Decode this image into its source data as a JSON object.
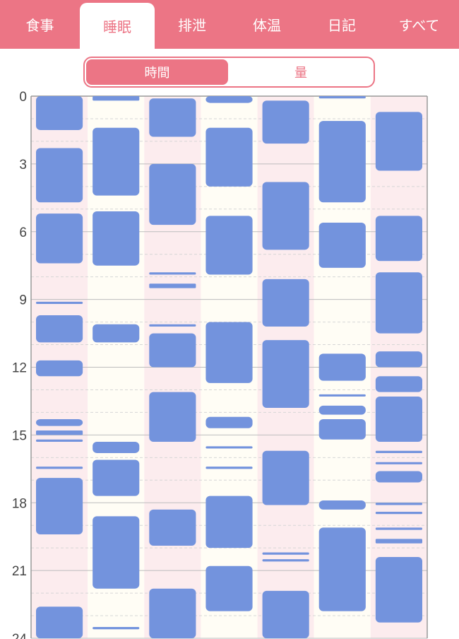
{
  "tabs": [
    {
      "label": "食事",
      "active": false
    },
    {
      "label": "睡眠",
      "active": true
    },
    {
      "label": "排泄",
      "active": false
    },
    {
      "label": "体温",
      "active": false
    },
    {
      "label": "日記",
      "active": false
    },
    {
      "label": "すべて",
      "active": false
    }
  ],
  "toggle": {
    "left_label": "時間",
    "right_label": "量",
    "selected": "時間"
  },
  "colors": {
    "accent": "#ec7585",
    "bar": "#7393dd",
    "pink_col": "#fcecee",
    "cream_col": "#fffdf5",
    "grid": "#c8c8c8"
  },
  "chart_data": {
    "type": "timeline",
    "ylim": [
      0,
      24
    ],
    "y_ticks": [
      0,
      3,
      6,
      9,
      12,
      15,
      18,
      21,
      24
    ],
    "columns": [
      {
        "blocks": [
          [
            0,
            1.5
          ],
          [
            2.3,
            4.7
          ],
          [
            5.2,
            7.4
          ],
          [
            9.1,
            9.2
          ],
          [
            9.7,
            10.9
          ],
          [
            11.7,
            12.4
          ],
          [
            14.3,
            14.6
          ],
          [
            14.8,
            15.0
          ],
          [
            15.2,
            15.3
          ],
          [
            16.4,
            16.5
          ],
          [
            16.9,
            19.4
          ],
          [
            22.6,
            24
          ]
        ]
      },
      {
        "blocks": [
          [
            0,
            0.2
          ],
          [
            1.4,
            4.4
          ],
          [
            5.1,
            7.5
          ],
          [
            10.1,
            10.9
          ],
          [
            15.3,
            15.8
          ],
          [
            16.1,
            17.7
          ],
          [
            18.6,
            21.8
          ],
          [
            23.5,
            23.6
          ]
        ]
      },
      {
        "blocks": [
          [
            0.1,
            1.8
          ],
          [
            3.0,
            5.7
          ],
          [
            7.8,
            7.9
          ],
          [
            8.3,
            8.5
          ],
          [
            10.1,
            10.2
          ],
          [
            10.5,
            12.0
          ],
          [
            13.1,
            15.3
          ],
          [
            18.3,
            19.9
          ],
          [
            21.8,
            24
          ]
        ]
      },
      {
        "blocks": [
          [
            0,
            0.3
          ],
          [
            1.4,
            4.0
          ],
          [
            5.3,
            7.9
          ],
          [
            10.0,
            12.7
          ],
          [
            14.2,
            14.7
          ],
          [
            15.5,
            15.6
          ],
          [
            16.4,
            16.5
          ],
          [
            17.7,
            20.0
          ],
          [
            20.8,
            22.8
          ]
        ]
      },
      {
        "blocks": [
          [
            0.2,
            2.1
          ],
          [
            3.8,
            6.8
          ],
          [
            8.1,
            10.2
          ],
          [
            10.8,
            13.8
          ],
          [
            15.7,
            18.1
          ],
          [
            20.2,
            20.3
          ],
          [
            20.5,
            20.6
          ],
          [
            21.9,
            24
          ]
        ]
      },
      {
        "blocks": [
          [
            0,
            0.1
          ],
          [
            1.1,
            4.7
          ],
          [
            5.6,
            7.6
          ],
          [
            11.4,
            12.6
          ],
          [
            13.2,
            13.3
          ],
          [
            13.7,
            14.1
          ],
          [
            14.3,
            15.2
          ],
          [
            17.9,
            18.3
          ],
          [
            19.1,
            22.8
          ]
        ]
      },
      {
        "blocks": [
          [
            0.7,
            3.3
          ],
          [
            5.3,
            7.3
          ],
          [
            7.8,
            10.5
          ],
          [
            11.3,
            12.0
          ],
          [
            12.4,
            13.1
          ],
          [
            13.3,
            15.3
          ],
          [
            15.7,
            15.8
          ],
          [
            16.2,
            16.3
          ],
          [
            16.6,
            17.1
          ],
          [
            18.0,
            18.1
          ],
          [
            18.4,
            18.5
          ],
          [
            19.1,
            19.2
          ],
          [
            19.6,
            19.8
          ],
          [
            20.4,
            23.3
          ]
        ]
      }
    ]
  }
}
